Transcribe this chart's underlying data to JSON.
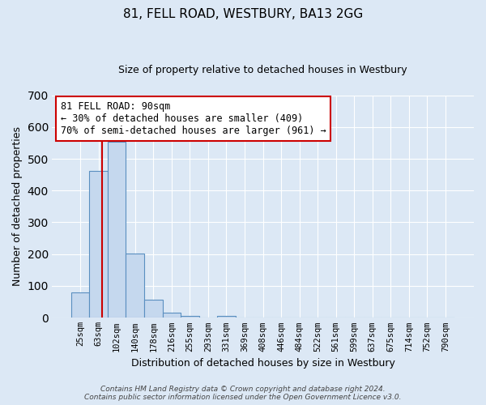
{
  "title": "81, FELL ROAD, WESTBURY, BA13 2GG",
  "subtitle": "Size of property relative to detached houses in Westbury",
  "xlabel": "Distribution of detached houses by size in Westbury",
  "ylabel": "Number of detached properties",
  "bar_labels": [
    "25sqm",
    "63sqm",
    "102sqm",
    "140sqm",
    "178sqm",
    "216sqm",
    "255sqm",
    "293sqm",
    "331sqm",
    "369sqm",
    "408sqm",
    "446sqm",
    "484sqm",
    "522sqm",
    "561sqm",
    "599sqm",
    "637sqm",
    "675sqm",
    "714sqm",
    "752sqm",
    "790sqm"
  ],
  "bar_values": [
    80,
    462,
    554,
    202,
    57,
    15,
    4,
    0,
    5,
    0,
    0,
    0,
    0,
    0,
    0,
    0,
    0,
    0,
    0,
    0,
    0
  ],
  "bar_color": "#c5d8ee",
  "bar_edge_color": "#5a8fc0",
  "property_line_color": "#cc0000",
  "annotation_text": "81 FELL ROAD: 90sqm\n← 30% of detached houses are smaller (409)\n70% of semi-detached houses are larger (961) →",
  "annotation_box_color": "#ffffff",
  "annotation_box_edge_color": "#cc0000",
  "ylim": [
    0,
    700
  ],
  "yticks": [
    0,
    100,
    200,
    300,
    400,
    500,
    600,
    700
  ],
  "footer_line1": "Contains HM Land Registry data © Crown copyright and database right 2024.",
  "footer_line2": "Contains public sector information licensed under the Open Government Licence v3.0.",
  "background_color": "#dce8f5",
  "plot_bg_color": "#dce8f5",
  "grid_color": "#ffffff",
  "title_fontsize": 11,
  "subtitle_fontsize": 9,
  "xlabel_fontsize": 9,
  "ylabel_fontsize": 9,
  "tick_fontsize": 7.5,
  "annotation_fontsize": 8.5,
  "footer_fontsize": 6.5
}
